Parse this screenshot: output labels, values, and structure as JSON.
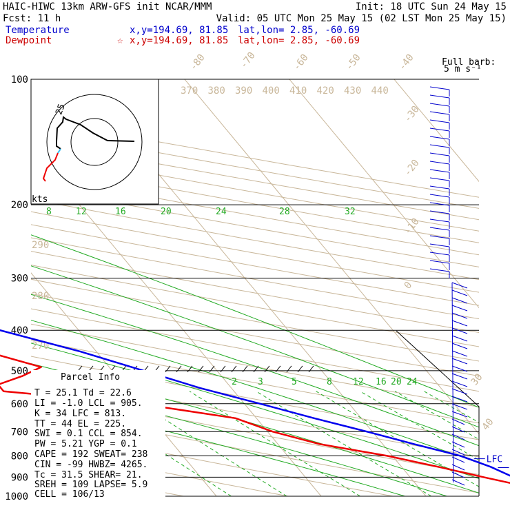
{
  "header": {
    "title": "HAIC-HIWC 13km ARW-GFS init   NCAR/MMM",
    "init": "Init: 18 UTC Sun 24 May 15",
    "fcst": "Fcst:    11 h",
    "valid": "Valid: 05 UTC Mon 25 May 15 (02 LST Mon 25 May 15)",
    "temp_label": "Temperature",
    "temp_xy": "x,y=194.69, 81.85",
    "temp_latlon": "lat,lon=  2.85, -60.69",
    "dew_label": "Dewpoint",
    "dew_xy": "x,y=194.69, 81.85",
    "dew_latlon": "lat,lon=  2.85, -60.69",
    "star": "☆",
    "barb_title_1": "Full barb:",
    "barb_title_2": "5 m s⁻¹"
  },
  "colors": {
    "temperature": "#0000ee",
    "dewpoint": "#ee0000",
    "mixing_ratio": "#22aa22",
    "isotherm": "#c9b79a",
    "label_blue": "#0000cc",
    "label_red": "#cc0000"
  },
  "parcel": {
    "title": "Parcel Info",
    "rows": [
      "T  =   25.1  Td =  22.6",
      "LI =   -1.0  LCL =  905.",
      "K  =     34  LFC =  813.",
      "TT =     44  EL  =  225.",
      "SWI =   0.1  CCL =  854.",
      "PW =   5.21  YGP =   0.1",
      "CAPE =  192  SWEAT=  238",
      "CIN =   -99  HWBZ= 4265.",
      "Tc =   31.5  SHEAR=  21.",
      "SREH =  109  LAPSE=   5.9",
      "CELL = 106/13"
    ]
  },
  "hodograph": {
    "units_label": "kts",
    "ring_label": "25"
  },
  "chart_data": {
    "type": "line",
    "subtype": "skew-T log-P sounding",
    "y_axis": {
      "scale": "log",
      "unit": "hPa",
      "range": [
        1000,
        100
      ],
      "ticks": [
        100,
        200,
        300,
        400,
        500,
        600,
        700,
        800,
        900,
        1000
      ]
    },
    "isotherm_labels": [
      "-80",
      "-70",
      "-60",
      "-50",
      "-40",
      "-30",
      "-20",
      "-10",
      "0",
      "30",
      "40"
    ],
    "theta_labels": [
      "290",
      "280",
      "270"
    ],
    "thetae_labels": [
      "370",
      "380",
      "390",
      "400",
      "410",
      "420",
      "430",
      "440"
    ],
    "mixing_ratio_labels_upper": [
      "8",
      "12",
      "16",
      "20",
      "24",
      "28",
      "32"
    ],
    "mixing_ratio_labels_lower": [
      "2",
      "3",
      "5",
      "8",
      "12",
      "16",
      "20",
      "24"
    ],
    "levels": [
      {
        "name": "EL",
        "p": 225
      },
      {
        "name": "LFC",
        "p": 813
      },
      {
        "name": "CCL",
        "p": 854
      },
      {
        "name": "LCL",
        "p": 905
      }
    ],
    "series": [
      {
        "name": "Temperature",
        "points": [
          {
            "p": 990,
            "t": 25.0
          },
          {
            "p": 950,
            "t": 22.0
          },
          {
            "p": 905,
            "t": 20.0
          },
          {
            "p": 850,
            "t": 18.5
          },
          {
            "p": 800,
            "t": 16.5
          },
          {
            "p": 750,
            "t": 13.0
          },
          {
            "p": 700,
            "t": 9.5
          },
          {
            "p": 650,
            "t": 5.5
          },
          {
            "p": 600,
            "t": 1.5
          },
          {
            "p": 550,
            "t": -3.0
          },
          {
            "p": 500,
            "t": -7.0
          },
          {
            "p": 450,
            "t": -11.5
          },
          {
            "p": 400,
            "t": -17.5
          },
          {
            "p": 350,
            "t": -24.5
          },
          {
            "p": 300,
            "t": -33.0
          },
          {
            "p": 250,
            "t": -42.5
          },
          {
            "p": 200,
            "t": -53.0
          },
          {
            "p": 175,
            "t": -60.0
          },
          {
            "p": 150,
            "t": -68.0
          },
          {
            "p": 135,
            "t": -74.0
          },
          {
            "p": 123,
            "t": -80.0
          },
          {
            "p": 112,
            "t": -73.0
          },
          {
            "p": 104,
            "t": -67.0
          }
        ]
      },
      {
        "name": "Dewpoint",
        "points": [
          {
            "p": 990,
            "t": 22.5
          },
          {
            "p": 950,
            "t": 20.5
          },
          {
            "p": 900,
            "t": 17.0
          },
          {
            "p": 850,
            "t": 13.5
          },
          {
            "p": 800,
            "t": 9.5
          },
          {
            "p": 750,
            "t": 4.0
          },
          {
            "p": 700,
            "t": 0.5
          },
          {
            "p": 650,
            "t": -2.0
          },
          {
            "p": 600,
            "t": -10.0
          },
          {
            "p": 560,
            "t": -22.0
          },
          {
            "p": 540,
            "t": -22.0
          },
          {
            "p": 515,
            "t": -19.0
          },
          {
            "p": 490,
            "t": -16.5
          },
          {
            "p": 450,
            "t": -20.5
          },
          {
            "p": 400,
            "t": -27.0
          },
          {
            "p": 350,
            "t": -36.0
          },
          {
            "p": 300,
            "t": -46.0
          },
          {
            "p": 275,
            "t": -48.0
          },
          {
            "p": 260,
            "t": -52.0
          },
          {
            "p": 240,
            "t": -55.0
          },
          {
            "p": 220,
            "t": -60.0
          },
          {
            "p": 200,
            "t": -67.0
          },
          {
            "p": 180,
            "t": -71.0
          },
          {
            "p": 160,
            "t": -76.0
          },
          {
            "p": 140,
            "t": -80.0
          },
          {
            "p": 125,
            "t": -84.0
          },
          {
            "p": 110,
            "t": -88.0
          },
          {
            "p": 100,
            "t": -90.0
          }
        ]
      }
    ]
  }
}
